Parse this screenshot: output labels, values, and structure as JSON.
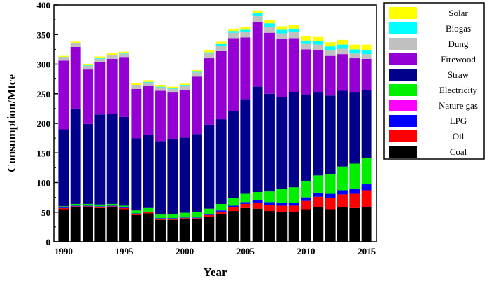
{
  "chart_data": {
    "type": "bar",
    "stacked": true,
    "title": "",
    "xlabel": "Year",
    "ylabel": "Consumption/Mtce",
    "ylim": [
      0,
      400
    ],
    "yticks": [
      0,
      50,
      100,
      150,
      200,
      250,
      300,
      350,
      400
    ],
    "xtick_labels": [
      "1990",
      "1995",
      "2000",
      "2005",
      "2010",
      "2015"
    ],
    "legend_position": "right",
    "categories": [
      1990,
      1991,
      1992,
      1993,
      1994,
      1995,
      1996,
      1997,
      1998,
      1999,
      2000,
      2001,
      2002,
      2003,
      2004,
      2005,
      2006,
      2007,
      2008,
      2009,
      2010,
      2011,
      2012,
      2013,
      2014,
      2015
    ],
    "series": [
      {
        "name": "Coal",
        "color": "#000000",
        "values": [
          55,
          58,
          58,
          57,
          58,
          55,
          45,
          48,
          37,
          37,
          38,
          38,
          42,
          47,
          52,
          57,
          56,
          52,
          50,
          50,
          55,
          58,
          55,
          58,
          57,
          58
        ]
      },
      {
        "name": "Oil",
        "color": "#ff0000",
        "values": [
          2,
          2,
          2,
          2,
          2,
          2,
          2,
          2,
          2,
          2,
          2,
          2,
          3,
          4,
          6,
          7,
          10,
          10,
          11,
          11,
          14,
          18,
          19,
          22,
          24,
          29
        ]
      },
      {
        "name": "LPG",
        "color": "#0000ff",
        "values": [
          1,
          1,
          1,
          1,
          1,
          1,
          1,
          1,
          1,
          1,
          1,
          1,
          1,
          2,
          3,
          3,
          4,
          5,
          5,
          5,
          6,
          7,
          7,
          7,
          8,
          10
        ]
      },
      {
        "name": "Nature gas",
        "color": "#ff00ff",
        "values": [
          0,
          0,
          0,
          0,
          0,
          0,
          0,
          0,
          0,
          0,
          0,
          0,
          0,
          0,
          0,
          0,
          0,
          0,
          0,
          0,
          0,
          0,
          0,
          0,
          0,
          0
        ]
      },
      {
        "name": "Electricity",
        "color": "#00ee00",
        "values": [
          2,
          3,
          3,
          3,
          3,
          3,
          5,
          6,
          6,
          7,
          8,
          9,
          10,
          11,
          13,
          14,
          14,
          18,
          23,
          26,
          28,
          29,
          33,
          40,
          43,
          44
        ]
      },
      {
        "name": "Straw",
        "color": "#00008b",
        "values": [
          130,
          161,
          135,
          152,
          152,
          150,
          122,
          123,
          124,
          127,
          127,
          132,
          142,
          143,
          147,
          160,
          178,
          165,
          155,
          161,
          146,
          140,
          133,
          128,
          120,
          115
        ]
      },
      {
        "name": "Firewood",
        "color": "#9400d3",
        "values": [
          116,
          104,
          92,
          88,
          93,
          100,
          83,
          83,
          85,
          78,
          81,
          97,
          112,
          115,
          123,
          104,
          109,
          103,
          99,
          91,
          76,
          72,
          67,
          62,
          58,
          53
        ]
      },
      {
        "name": "Dung",
        "color": "#c0c0c0",
        "values": [
          5,
          6,
          6,
          6,
          6,
          6,
          6,
          6,
          6,
          6,
          6,
          7,
          8,
          9,
          9,
          9,
          10,
          10,
          9,
          10,
          9,
          9,
          9,
          9,
          8,
          8
        ]
      },
      {
        "name": "Biogas",
        "color": "#00ffff",
        "values": [
          1,
          1,
          1,
          1,
          1,
          1,
          1,
          1,
          1,
          1,
          1,
          1,
          2,
          3,
          3,
          4,
          5,
          6,
          6,
          6,
          6,
          6,
          7,
          7,
          7,
          7
        ]
      },
      {
        "name": "Solar",
        "color": "#ffff00",
        "values": [
          2,
          2,
          2,
          3,
          3,
          3,
          3,
          3,
          3,
          3,
          3,
          3,
          4,
          4,
          4,
          5,
          5,
          6,
          6,
          6,
          7,
          7,
          7,
          8,
          8,
          9
        ]
      }
    ]
  }
}
